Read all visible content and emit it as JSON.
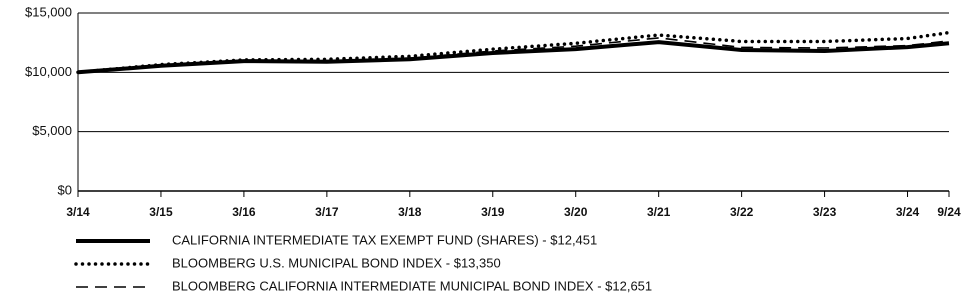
{
  "chart_data": {
    "type": "line",
    "x": [
      "3/14",
      "3/15",
      "3/16",
      "3/17",
      "3/18",
      "3/19",
      "3/20",
      "3/21",
      "3/22",
      "3/23",
      "3/24",
      "9/24"
    ],
    "ylim": [
      0,
      15000
    ],
    "yticks": [
      {
        "value": 0,
        "label": "$0"
      },
      {
        "value": 5000,
        "label": "$5,000"
      },
      {
        "value": 10000,
        "label": "$10,000"
      },
      {
        "value": 15000,
        "label": "$15,000"
      }
    ],
    "grid": true,
    "series": [
      {
        "name": "CALIFORNIA INTERMEDIATE TAX EXEMPT FUND (SHARES) - $12,451",
        "color": "#000000",
        "style": "solid",
        "values": [
          10000,
          10550,
          10950,
          10900,
          11100,
          11630,
          11960,
          12550,
          11880,
          11800,
          12130,
          12451
        ]
      },
      {
        "name": "BLOOMBERG U.S. MUNICIPAL BOND INDEX - $13,350",
        "color": "#000000",
        "style": "dotted",
        "values": [
          10000,
          10650,
          11050,
          11100,
          11350,
          11950,
          12450,
          13150,
          12600,
          12600,
          12850,
          13350
        ]
      },
      {
        "name": "BLOOMBERG CALIFORNIA INTERMEDIATE MUNICIPAL BOND INDEX - $12,651",
        "color": "#000000",
        "style": "dashed",
        "values": [
          10000,
          10600,
          11000,
          11000,
          11200,
          11800,
          12200,
          12900,
          12100,
          12050,
          12250,
          12651
        ]
      }
    ]
  }
}
